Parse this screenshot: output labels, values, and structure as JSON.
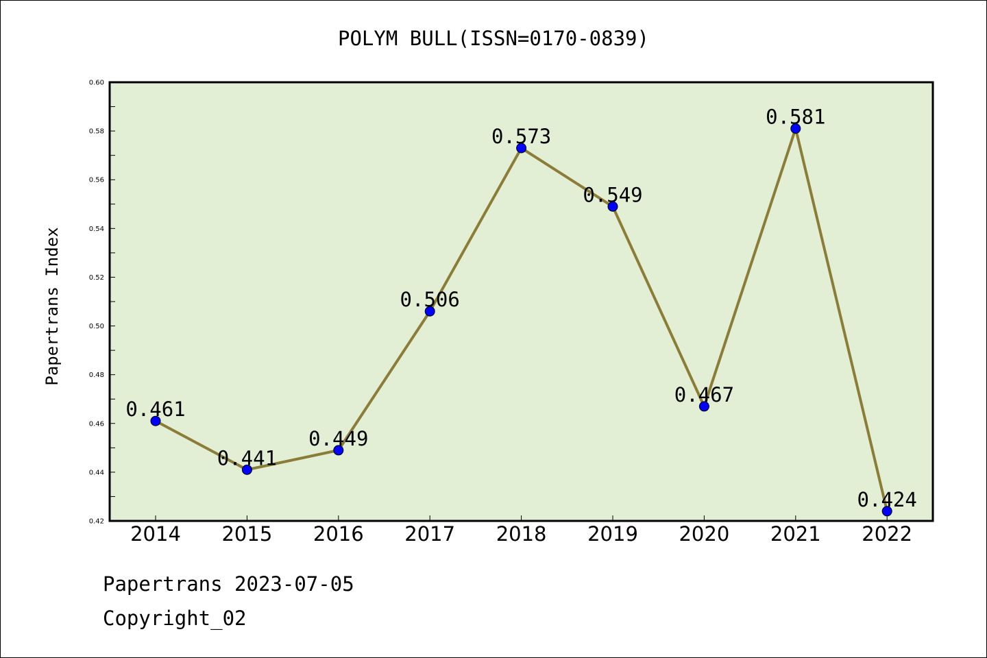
{
  "footer": {
    "line1": "Papertrans 2023-07-05",
    "line2": "Copyright_02"
  },
  "colors": {
    "plot_background": "#e2efd5",
    "line": "#8b7d38",
    "marker": "#0000ff"
  },
  "chart_data": {
    "type": "line",
    "title": "POLYM BULL(ISSN=0170-0839)",
    "xlabel": "",
    "ylabel": "Papertrans Index",
    "categories": [
      "2014",
      "2015",
      "2016",
      "2017",
      "2018",
      "2019",
      "2020",
      "2021",
      "2022"
    ],
    "series": [
      {
        "values": [
          0.461,
          0.441,
          0.449,
          0.506,
          0.573,
          0.549,
          0.467,
          0.581,
          0.424
        ],
        "labels": [
          "0.461",
          "0.441",
          "0.449",
          "0.506",
          "0.573",
          "0.549",
          "0.467",
          "0.581",
          "0.424"
        ]
      }
    ],
    "ylim": [
      0.42,
      0.6
    ],
    "yticks": [
      "0.42",
      "0.44",
      "0.46",
      "0.48",
      "0.50",
      "0.52",
      "0.54",
      "0.56",
      "0.58",
      "0.60"
    ],
    "grid": false,
    "legend": "none"
  }
}
